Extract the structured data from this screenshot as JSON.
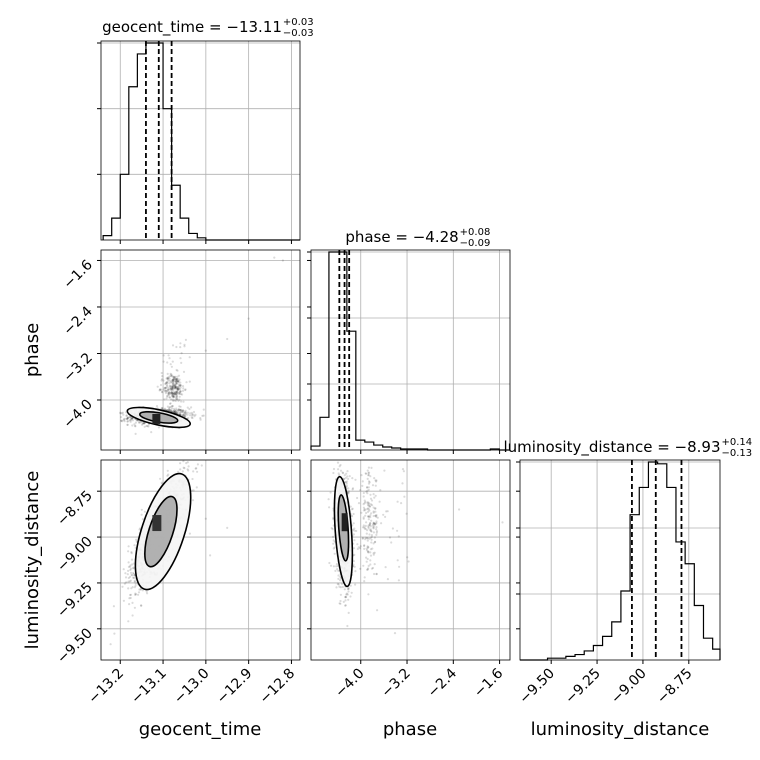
{
  "chart_data": {
    "type": "corner",
    "parameters": [
      "geocent_time",
      "phase",
      "luminosity_distance"
    ],
    "titles": [
      {
        "param": "geocent_time",
        "prefix": "geocent_time = ",
        "median": "−13.11",
        "upper": "+0.03",
        "lower": "−0.03"
      },
      {
        "param": "phase",
        "prefix": "phase = ",
        "median": "−4.28",
        "upper": "+0.08",
        "lower": "−0.09"
      },
      {
        "param": "luminosity_distance",
        "prefix": "luminosity_distance = ",
        "median": "−8.93",
        "upper": "+0.14",
        "lower": "−0.13"
      }
    ],
    "ranges": {
      "geocent_time": [
        -13.245,
        -12.78
      ],
      "phase": [
        -4.86,
        -1.42
      ],
      "luminosity_distance": [
        -9.67,
        -8.58
      ]
    },
    "ticks": {
      "geocent_time": [
        -13.2,
        -13.1,
        -13.0,
        -12.9,
        -12.8
      ],
      "phase": [
        -4.0,
        -3.2,
        -2.4,
        -1.6
      ],
      "luminosity_distance": [
        -9.5,
        -9.25,
        -9.0,
        -8.75
      ]
    },
    "tick_labels": {
      "geocent_time": [
        "−13.2",
        "−13.1",
        "−13.0",
        "−12.9",
        "−12.8"
      ],
      "phase": [
        "−4.0",
        "−3.2",
        "−2.4",
        "−1.6"
      ],
      "luminosity_distance": [
        "−9.50",
        "−9.25",
        "−9.00",
        "−8.75"
      ],
      "luminosity_distance_y": [
        "−9.50",
        "−9.25",
        "−9.00",
        "−8.75"
      ]
    },
    "quantiles": {
      "geocent_time": [
        -13.14,
        -13.11,
        -13.08
      ],
      "phase": [
        -4.37,
        -4.28,
        -4.2
      ],
      "luminosity_distance": [
        -9.06,
        -8.93,
        -8.79
      ]
    },
    "histograms": {
      "geocent_time": {
        "edges_start": -13.24,
        "bin_width": 0.02,
        "counts": [
          2,
          10,
          30,
          70,
          85,
          90,
          90,
          60,
          25,
          10,
          3,
          1,
          0,
          0,
          0,
          0,
          0,
          0,
          0,
          0,
          0,
          0,
          0
        ]
      },
      "phase": {
        "edges_start": -4.86,
        "bin_width": 0.155,
        "counts": [
          4,
          33,
          200,
          200,
          120,
          10,
          8,
          5,
          3,
          2,
          1,
          1,
          1,
          0,
          0,
          0,
          0,
          0,
          0,
          0,
          1,
          0
        ]
      },
      "luminosity_distance": {
        "edges_start": -9.67,
        "bin_width": 0.05,
        "counts": [
          0,
          0,
          0,
          1,
          1,
          2,
          3,
          5,
          8,
          13,
          21,
          38,
          80,
          95,
          109,
          108,
          95,
          65,
          53,
          30,
          12,
          6
        ]
      }
    },
    "grid": true
  }
}
